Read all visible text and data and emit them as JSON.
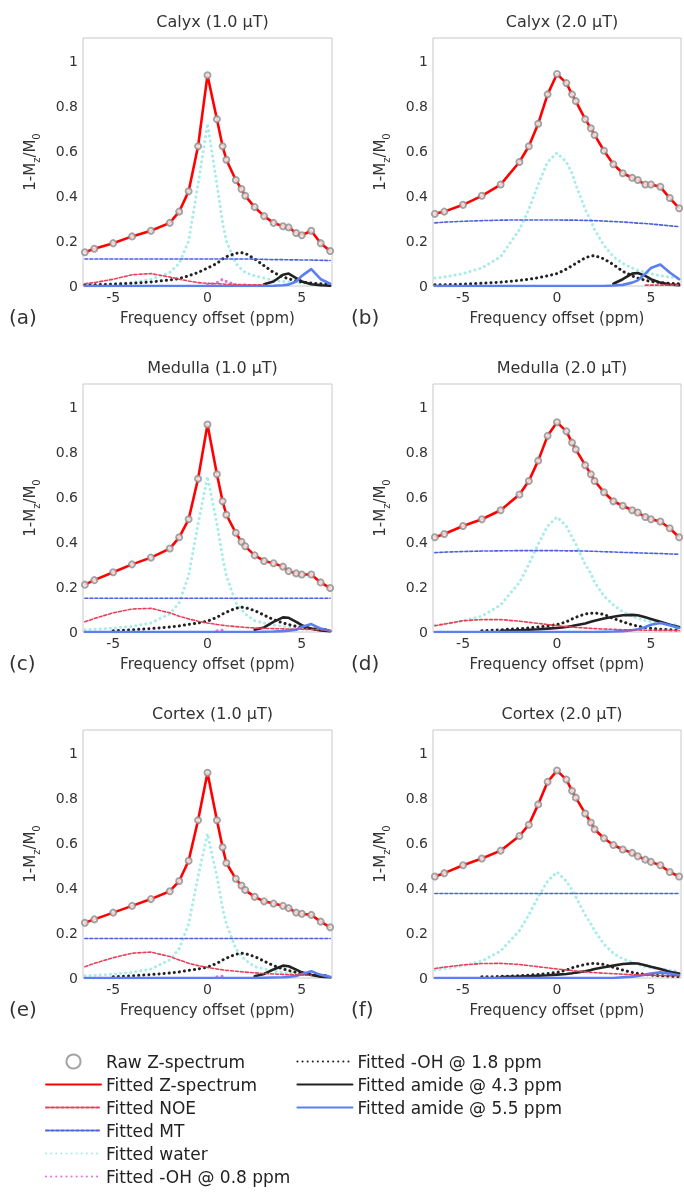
{
  "chart_data": [
    {
      "type": "line",
      "title": "Calyx (1.0 µT)",
      "xlabel": "Frequency offset (ppm)",
      "ylabel": "1-M$_{z}$/M$_{0}$",
      "annotations": [
        "(a)"
      ],
      "xlim": [
        -6.6,
        6.6
      ],
      "xticks": [
        -5,
        0,
        5
      ],
      "ylim": [
        0,
        1.1
      ],
      "yticks": [
        0,
        0.2,
        0.4,
        0.6,
        0.8,
        1
      ],
      "x": [
        -6.5,
        -6,
        -5,
        -4,
        -3,
        -2,
        -1.5,
        -1,
        -0.5,
        0,
        0.5,
        0.8,
        1,
        1.5,
        1.8,
        2,
        2.5,
        3,
        3.5,
        4,
        4.3,
        4.7,
        5,
        5.5,
        6,
        6.5
      ],
      "series": [
        {
          "type": "scatter",
          "marker": "circle",
          "color": "#8c8c8c",
          "values": [
            0.15,
            0.165,
            0.19,
            0.22,
            0.245,
            0.28,
            0.33,
            0.42,
            0.62,
            0.935,
            0.74,
            0.62,
            0.56,
            0.47,
            0.43,
            0.4,
            0.35,
            0.31,
            0.28,
            0.265,
            0.26,
            0.235,
            0.225,
            0.245,
            0.19,
            0.155
          ]
        },
        {
          "color": "#ff0000",
          "line_style": "solid",
          "values": [
            0.15,
            0.165,
            0.19,
            0.22,
            0.245,
            0.28,
            0.33,
            0.42,
            0.62,
            0.935,
            0.74,
            0.62,
            0.56,
            0.47,
            0.43,
            0.4,
            0.35,
            0.31,
            0.28,
            0.265,
            0.26,
            0.235,
            0.225,
            0.245,
            0.19,
            0.155
          ]
        },
        {
          "color": "#e8405a",
          "line_style": "dashed",
          "values": [
            0.01,
            0.015,
            0.03,
            0.05,
            0.055,
            0.04,
            0.03,
            0.022,
            0.015,
            0.012,
            0.01,
            0.009,
            0.008,
            0.007,
            0.006,
            0.006,
            0.005,
            0.005,
            null,
            null,
            null,
            null,
            null,
            null,
            null,
            null
          ]
        },
        {
          "color": "#4a60e0",
          "line_style": "dashed",
          "values": [
            0.12,
            0.12,
            0.12,
            0.12,
            0.12,
            0.12,
            0.12,
            0.12,
            0.12,
            0.12,
            0.12,
            0.12,
            0.12,
            0.12,
            0.12,
            0.12,
            0.119,
            0.118,
            0.117,
            0.117,
            0.116,
            0.116,
            0.115,
            0.115,
            0.114,
            0.113
          ]
        },
        {
          "color": "#a8ece8",
          "line_style": "dotted",
          "values": [
            0.005,
            0.006,
            0.01,
            0.015,
            0.03,
            0.06,
            0.1,
            0.2,
            0.45,
            0.72,
            0.45,
            0.28,
            0.2,
            0.1,
            0.075,
            0.06,
            0.045,
            0.035,
            0.025,
            0.02,
            0.018,
            0.015,
            0.013,
            0.01,
            0.008,
            0.007
          ]
        },
        {
          "color": "#e070e0",
          "line_style": "dotted",
          "values": [
            null,
            null,
            null,
            null,
            null,
            null,
            null,
            null,
            null,
            0.005,
            0.015,
            0.03,
            0.02,
            0.005,
            null,
            null,
            null,
            null,
            null,
            null,
            null,
            null,
            null,
            null,
            null,
            null
          ]
        },
        {
          "color": "#222222",
          "line_style": "dotted",
          "values": [
            0.005,
            0.006,
            0.008,
            0.012,
            0.018,
            0.027,
            0.033,
            0.045,
            0.06,
            0.08,
            0.1,
            0.12,
            0.13,
            0.145,
            0.148,
            0.145,
            0.12,
            0.09,
            0.06,
            0.04,
            0.032,
            0.022,
            0.018,
            0.013,
            0.01,
            0.008
          ]
        },
        {
          "color": "#222222",
          "line_style": "solid",
          "values": [
            null,
            null,
            null,
            null,
            null,
            null,
            null,
            null,
            null,
            null,
            null,
            null,
            null,
            null,
            null,
            null,
            null,
            0.008,
            0.02,
            0.05,
            0.055,
            0.035,
            0.02,
            0.008,
            0.003,
            0.001
          ]
        },
        {
          "color": "#5b7ff0",
          "line_style": "solid",
          "values": [
            0,
            0,
            0,
            0,
            0,
            0,
            0,
            0,
            0,
            0,
            0,
            0,
            0,
            0,
            0,
            0,
            0,
            0,
            0.001,
            0.003,
            0.006,
            0.02,
            0.045,
            0.075,
            0.03,
            0.01
          ]
        }
      ]
    },
    {
      "type": "line",
      "title": "Calyx (2.0 µT)",
      "xlabel": "Frequency offset (ppm)",
      "ylabel": "1-M$_{z}$/M$_{0}$",
      "annotations": [
        "(b)"
      ],
      "xlim": [
        -6.6,
        6.6
      ],
      "xticks": [
        -5,
        0,
        5
      ],
      "ylim": [
        0,
        1.1
      ],
      "yticks": [
        0,
        0.2,
        0.4,
        0.6,
        0.8,
        1
      ],
      "x": [
        -6.5,
        -6,
        -5,
        -4,
        -3,
        -2,
        -1.5,
        -1,
        -0.5,
        0,
        0.5,
        0.8,
        1,
        1.5,
        1.8,
        2,
        2.5,
        3,
        3.5,
        4,
        4.3,
        4.7,
        5,
        5.5,
        6,
        6.5
      ],
      "series": [
        {
          "type": "scatter",
          "marker": "circle",
          "color": "#8c8c8c",
          "values": [
            0.32,
            0.33,
            0.36,
            0.4,
            0.45,
            0.55,
            0.62,
            0.72,
            0.85,
            0.94,
            0.9,
            0.85,
            0.82,
            0.74,
            0.7,
            0.67,
            0.6,
            0.54,
            0.5,
            0.48,
            0.47,
            0.45,
            0.45,
            0.44,
            0.39,
            0.345
          ]
        },
        {
          "color": "#ff0000",
          "line_style": "solid",
          "values": [
            0.32,
            0.33,
            0.36,
            0.4,
            0.45,
            0.55,
            0.62,
            0.72,
            0.85,
            0.94,
            0.9,
            0.85,
            0.82,
            0.74,
            0.7,
            0.67,
            0.6,
            0.54,
            0.5,
            0.48,
            0.47,
            0.45,
            0.45,
            0.44,
            0.39,
            0.345
          ]
        },
        {
          "color": "#e8405a",
          "line_style": "dashed",
          "values": [
            null,
            null,
            null,
            null,
            null,
            null,
            null,
            null,
            null,
            null,
            null,
            null,
            null,
            null,
            null,
            null,
            null,
            null,
            null,
            null,
            null,
            0.004,
            0.004,
            0.004,
            0.004,
            0.004
          ]
        },
        {
          "color": "#4a60e0",
          "line_style": "dashed",
          "values": [
            0.28,
            0.283,
            0.287,
            0.29,
            0.292,
            0.293,
            0.293,
            0.293,
            0.293,
            0.293,
            0.292,
            0.292,
            0.292,
            0.291,
            0.29,
            0.29,
            0.288,
            0.286,
            0.284,
            0.281,
            0.279,
            0.277,
            0.275,
            0.271,
            0.267,
            0.263
          ]
        },
        {
          "color": "#a8ece8",
          "line_style": "dotted",
          "values": [
            0.035,
            0.04,
            0.055,
            0.08,
            0.13,
            0.25,
            0.34,
            0.45,
            0.55,
            0.59,
            0.55,
            0.5,
            0.45,
            0.34,
            0.29,
            0.25,
            0.18,
            0.13,
            0.1,
            0.08,
            0.07,
            0.06,
            0.055,
            0.045,
            0.04,
            0.035
          ]
        },
        {
          "color": "#222222",
          "line_style": "dotted",
          "values": [
            0.005,
            0.006,
            0.008,
            0.012,
            0.017,
            0.025,
            0.03,
            0.037,
            0.045,
            0.055,
            0.075,
            0.09,
            0.1,
            0.125,
            0.133,
            0.135,
            0.12,
            0.095,
            0.065,
            0.045,
            0.035,
            0.025,
            0.02,
            0.015,
            0.012,
            0.01
          ]
        },
        {
          "color": "#222222",
          "line_style": "solid",
          "values": [
            null,
            null,
            null,
            null,
            null,
            null,
            null,
            null,
            null,
            null,
            null,
            null,
            null,
            null,
            null,
            null,
            null,
            0.01,
            0.03,
            0.055,
            0.058,
            0.045,
            0.03,
            0.015,
            0.007,
            0.004
          ]
        },
        {
          "color": "#5b7ff0",
          "line_style": "solid",
          "values": [
            0,
            0,
            0,
            0,
            0,
            0,
            0,
            0,
            0,
            0,
            0,
            0,
            0,
            0,
            0,
            0,
            0,
            0.002,
            0.005,
            0.015,
            0.025,
            0.055,
            0.08,
            0.095,
            0.06,
            0.03
          ]
        }
      ]
    },
    {
      "type": "line",
      "title": "Medulla (1.0 µT)",
      "xlabel": "Frequency offset (ppm)",
      "ylabel": "1-M$_{z}$/M$_{0}$",
      "annotations": [
        "(c)"
      ],
      "xlim": [
        -6.6,
        6.6
      ],
      "xticks": [
        -5,
        0,
        5
      ],
      "ylim": [
        0,
        1.1
      ],
      "yticks": [
        0,
        0.2,
        0.4,
        0.6,
        0.8,
        1
      ],
      "x": [
        -6.5,
        -6,
        -5,
        -4,
        -3,
        -2,
        -1.5,
        -1,
        -0.5,
        0,
        0.5,
        0.8,
        1,
        1.5,
        1.8,
        2,
        2.5,
        3,
        3.5,
        4,
        4.3,
        4.7,
        5,
        5.5,
        6,
        6.5
      ],
      "series": [
        {
          "type": "scatter",
          "marker": "circle",
          "color": "#8c8c8c",
          "values": [
            0.21,
            0.23,
            0.265,
            0.3,
            0.33,
            0.37,
            0.42,
            0.5,
            0.68,
            0.92,
            0.7,
            0.58,
            0.52,
            0.44,
            0.4,
            0.38,
            0.34,
            0.315,
            0.305,
            0.29,
            0.27,
            0.26,
            0.255,
            0.255,
            0.22,
            0.195
          ]
        },
        {
          "color": "#ff0000",
          "line_style": "solid",
          "values": [
            0.21,
            0.23,
            0.265,
            0.3,
            0.33,
            0.37,
            0.42,
            0.5,
            0.68,
            0.92,
            0.7,
            0.58,
            0.52,
            0.44,
            0.4,
            0.38,
            0.34,
            0.315,
            0.305,
            0.29,
            0.27,
            0.26,
            0.255,
            0.255,
            0.22,
            0.195
          ]
        },
        {
          "color": "#e8405a",
          "line_style": "dashed",
          "values": [
            0.045,
            0.06,
            0.085,
            0.102,
            0.105,
            0.085,
            0.07,
            0.058,
            0.048,
            0.04,
            0.033,
            0.03,
            0.028,
            0.024,
            0.022,
            0.02,
            0.018,
            0.016,
            0.015,
            0.014,
            0.013,
            0.012,
            0.012,
            0.011,
            0.01,
            0.01
          ]
        },
        {
          "color": "#4a60e0",
          "line_style": "dashed",
          "values": [
            0.15,
            0.15,
            0.15,
            0.15,
            0.15,
            0.15,
            0.15,
            0.15,
            0.15,
            0.15,
            0.15,
            0.15,
            0.15,
            0.15,
            0.15,
            0.15,
            0.15,
            0.15,
            0.15,
            0.15,
            0.15,
            0.15,
            0.15,
            0.15,
            0.15,
            0.15
          ]
        },
        {
          "color": "#a8ece8",
          "line_style": "dotted",
          "values": [
            0.01,
            0.012,
            0.017,
            0.025,
            0.04,
            0.08,
            0.13,
            0.25,
            0.48,
            0.69,
            0.48,
            0.33,
            0.25,
            0.13,
            0.1,
            0.08,
            0.05,
            0.04,
            0.03,
            0.025,
            0.022,
            0.018,
            0.016,
            0.013,
            0.011,
            0.01
          ]
        },
        {
          "color": "#e070e0",
          "line_style": "dotted",
          "values": [
            null,
            null,
            null,
            null,
            null,
            null,
            null,
            null,
            null,
            null,
            0.005,
            0.008,
            0.005,
            null,
            null,
            null,
            null,
            null,
            null,
            null,
            null,
            null,
            null,
            null,
            null,
            null
          ]
        },
        {
          "color": "#222222",
          "line_style": "dotted",
          "values": [
            null,
            null,
            0.006,
            0.01,
            0.015,
            0.022,
            0.027,
            0.034,
            0.04,
            0.048,
            0.065,
            0.08,
            0.088,
            0.105,
            0.11,
            0.108,
            0.095,
            0.075,
            0.055,
            0.04,
            0.033,
            0.025,
            0.02,
            0.015,
            0.012,
            0.01
          ]
        },
        {
          "color": "#222222",
          "line_style": "solid",
          "values": [
            null,
            null,
            null,
            null,
            null,
            null,
            null,
            null,
            null,
            null,
            null,
            null,
            null,
            null,
            null,
            null,
            0.01,
            0.02,
            0.045,
            0.065,
            0.063,
            0.045,
            0.03,
            0.015,
            0.007,
            0.004
          ]
        },
        {
          "color": "#5b7ff0",
          "line_style": "solid",
          "values": [
            0,
            0,
            0,
            0,
            0,
            0,
            0,
            0,
            0,
            0,
            0,
            0,
            0,
            0,
            0,
            0,
            0,
            0.001,
            0.002,
            0.004,
            0.006,
            0.01,
            0.022,
            0.035,
            0.015,
            0.006
          ]
        }
      ]
    },
    {
      "type": "line",
      "title": "Medulla (2.0 µT)",
      "xlabel": "Frequency offset (ppm)",
      "ylabel": "1-M$_{z}$/M$_{0}$",
      "annotations": [
        "(d)"
      ],
      "xlim": [
        -6.6,
        6.6
      ],
      "xticks": [
        -5,
        0,
        5
      ],
      "ylim": [
        0,
        1.1
      ],
      "yticks": [
        0,
        0.2,
        0.4,
        0.6,
        0.8,
        1
      ],
      "x": [
        -6.5,
        -6,
        -5,
        -4,
        -3,
        -2,
        -1.5,
        -1,
        -0.5,
        0,
        0.5,
        0.8,
        1,
        1.5,
        1.8,
        2,
        2.5,
        3,
        3.5,
        4,
        4.3,
        4.7,
        5,
        5.5,
        6,
        6.5
      ],
      "series": [
        {
          "type": "scatter",
          "marker": "circle",
          "color": "#8c8c8c",
          "values": [
            0.42,
            0.435,
            0.47,
            0.5,
            0.54,
            0.61,
            0.67,
            0.76,
            0.87,
            0.93,
            0.89,
            0.84,
            0.81,
            0.74,
            0.7,
            0.67,
            0.62,
            0.58,
            0.56,
            0.54,
            0.53,
            0.51,
            0.5,
            0.49,
            0.46,
            0.42
          ]
        },
        {
          "color": "#ff0000",
          "line_style": "solid",
          "values": [
            0.42,
            0.435,
            0.47,
            0.5,
            0.54,
            0.61,
            0.67,
            0.76,
            0.87,
            0.93,
            0.89,
            0.84,
            0.81,
            0.74,
            0.7,
            0.67,
            0.62,
            0.58,
            0.56,
            0.54,
            0.53,
            0.51,
            0.5,
            0.49,
            0.46,
            0.42
          ]
        },
        {
          "color": "#e8405a",
          "line_style": "dashed",
          "values": [
            0.028,
            0.035,
            0.05,
            0.055,
            0.055,
            0.048,
            0.043,
            0.038,
            0.033,
            0.028,
            0.024,
            0.022,
            0.02,
            0.018,
            0.016,
            0.015,
            0.013,
            0.012,
            0.01,
            0.01,
            0.009,
            0.008,
            0.008,
            0.007,
            0.007,
            0.006
          ]
        },
        {
          "color": "#4a60e0",
          "line_style": "dashed",
          "values": [
            0.352,
            0.354,
            0.357,
            0.359,
            0.36,
            0.361,
            0.361,
            0.361,
            0.361,
            0.361,
            0.36,
            0.36,
            0.36,
            0.359,
            0.358,
            0.358,
            0.356,
            0.355,
            0.353,
            0.352,
            0.351,
            0.35,
            0.349,
            0.348,
            0.346,
            0.345
          ]
        },
        {
          "color": "#a8ece8",
          "line_style": "dotted",
          "values": [
            0.03,
            0.035,
            0.05,
            0.07,
            0.12,
            0.22,
            0.3,
            0.39,
            0.47,
            0.51,
            0.47,
            0.42,
            0.39,
            0.3,
            0.26,
            0.22,
            0.16,
            0.12,
            0.09,
            0.07,
            0.06,
            0.05,
            0.045,
            0.04,
            0.035,
            0.03
          ]
        },
        {
          "color": "#222222",
          "line_style": "dotted",
          "values": [
            null,
            null,
            null,
            0.006,
            0.01,
            0.015,
            0.018,
            0.022,
            0.027,
            0.033,
            0.045,
            0.058,
            0.065,
            0.08,
            0.083,
            0.085,
            0.078,
            0.06,
            0.045,
            0.032,
            0.026,
            0.02,
            0.016,
            0.012,
            0.01,
            0.008
          ]
        },
        {
          "color": "#222222",
          "line_style": "solid",
          "values": [
            null,
            null,
            null,
            null,
            0.005,
            0.008,
            0.01,
            0.012,
            0.015,
            0.018,
            0.022,
            0.026,
            0.03,
            0.038,
            0.045,
            0.05,
            0.06,
            0.068,
            0.074,
            0.076,
            0.074,
            0.065,
            0.058,
            0.045,
            0.032,
            0.022
          ]
        },
        {
          "color": "#5b7ff0",
          "line_style": "solid",
          "values": [
            0,
            0,
            0,
            0,
            0,
            0,
            0,
            0,
            0,
            0,
            0,
            0,
            0,
            0,
            0,
            0,
            0.001,
            0.002,
            0.004,
            0.008,
            0.012,
            0.022,
            0.032,
            0.04,
            0.03,
            0.018
          ]
        }
      ]
    },
    {
      "type": "line",
      "title": "Cortex (1.0 µT)",
      "xlabel": "Frequency offset (ppm)",
      "ylabel": "1-M$_{z}$/M$_{0}$",
      "annotations": [
        "(e)"
      ],
      "xlim": [
        -6.6,
        6.6
      ],
      "xticks": [
        -5,
        0,
        5
      ],
      "ylim": [
        0,
        1.1
      ],
      "yticks": [
        0,
        0.2,
        0.4,
        0.6,
        0.8,
        1
      ],
      "x": [
        -6.5,
        -6,
        -5,
        -4,
        -3,
        -2,
        -1.5,
        -1,
        -0.5,
        0,
        0.5,
        0.8,
        1,
        1.5,
        1.8,
        2,
        2.5,
        3,
        3.5,
        4,
        4.3,
        4.7,
        5,
        5.5,
        6,
        6.5
      ],
      "series": [
        {
          "type": "scatter",
          "marker": "circle",
          "color": "#8c8c8c",
          "values": [
            0.245,
            0.26,
            0.29,
            0.32,
            0.35,
            0.385,
            0.43,
            0.52,
            0.7,
            0.91,
            0.7,
            0.58,
            0.51,
            0.44,
            0.41,
            0.39,
            0.36,
            0.34,
            0.33,
            0.32,
            0.31,
            0.29,
            0.285,
            0.28,
            0.25,
            0.225
          ]
        },
        {
          "color": "#ff0000",
          "line_style": "solid",
          "values": [
            0.245,
            0.26,
            0.29,
            0.32,
            0.35,
            0.385,
            0.43,
            0.52,
            0.7,
            0.91,
            0.7,
            0.58,
            0.51,
            0.44,
            0.41,
            0.39,
            0.36,
            0.34,
            0.33,
            0.32,
            0.31,
            0.29,
            0.285,
            0.28,
            0.25,
            0.225
          ]
        },
        {
          "color": "#e8405a",
          "line_style": "dashed",
          "values": [
            0.05,
            0.065,
            0.09,
            0.11,
            0.115,
            0.095,
            0.08,
            0.065,
            0.055,
            0.047,
            0.04,
            0.036,
            0.034,
            0.03,
            0.028,
            0.026,
            0.023,
            0.02,
            0.018,
            0.016,
            0.015,
            0.014,
            0.013,
            0.012,
            null,
            null
          ]
        },
        {
          "color": "#4a60e0",
          "line_style": "dashed",
          "values": [
            0.175,
            0.175,
            0.175,
            0.175,
            0.175,
            0.175,
            0.175,
            0.175,
            0.175,
            0.175,
            0.175,
            0.175,
            0.175,
            0.175,
            0.175,
            0.175,
            0.175,
            0.175,
            0.175,
            0.175,
            0.175,
            0.175,
            0.175,
            0.175,
            0.175,
            0.175
          ]
        },
        {
          "color": "#a8ece8",
          "line_style": "dotted",
          "values": [
            0.01,
            0.012,
            0.017,
            0.025,
            0.04,
            0.08,
            0.13,
            0.24,
            0.45,
            0.64,
            0.45,
            0.31,
            0.24,
            0.13,
            0.1,
            0.08,
            0.05,
            0.04,
            0.03,
            0.025,
            0.022,
            0.018,
            0.016,
            0.013,
            0.011,
            0.01
          ]
        },
        {
          "color": "#e070e0",
          "line_style": "dotted",
          "values": [
            null,
            null,
            null,
            null,
            null,
            null,
            null,
            null,
            null,
            null,
            0.005,
            0.008,
            0.005,
            null,
            null,
            null,
            null,
            null,
            null,
            null,
            null,
            null,
            null,
            null,
            null,
            null
          ]
        },
        {
          "color": "#222222",
          "line_style": "dotted",
          "values": [
            null,
            null,
            0.006,
            0.01,
            0.015,
            0.022,
            0.027,
            0.034,
            0.04,
            0.048,
            0.065,
            0.08,
            0.088,
            0.105,
            0.11,
            0.108,
            0.095,
            0.075,
            0.055,
            0.04,
            0.033,
            0.025,
            0.02,
            0.015,
            0.012,
            0.01
          ]
        },
        {
          "color": "#222222",
          "line_style": "solid",
          "values": [
            null,
            null,
            null,
            null,
            null,
            null,
            null,
            null,
            null,
            null,
            null,
            null,
            null,
            null,
            null,
            null,
            0.008,
            0.018,
            0.038,
            0.055,
            0.052,
            0.037,
            0.025,
            0.013,
            0.006,
            0.003
          ]
        },
        {
          "color": "#5b7ff0",
          "line_style": "solid",
          "values": [
            0,
            0,
            0,
            0,
            0,
            0,
            0,
            0,
            0,
            0,
            0,
            0,
            0,
            0,
            0,
            0,
            0,
            0.001,
            0.002,
            0.003,
            0.005,
            0.009,
            0.018,
            0.03,
            0.014,
            0.005
          ]
        }
      ]
    },
    {
      "type": "line",
      "title": "Cortex (2.0 µT)",
      "xlabel": "Frequency offset (ppm)",
      "ylabel": "1-M$_{z}$/M$_{0}$",
      "annotations": [
        "(f)"
      ],
      "xlim": [
        -6.6,
        6.6
      ],
      "xticks": [
        -5,
        0,
        5
      ],
      "ylim": [
        0,
        1.1
      ],
      "yticks": [
        0,
        0.2,
        0.4,
        0.6,
        0.8,
        1
      ],
      "legend": "bottom",
      "x": [
        -6.5,
        -6,
        -5,
        -4,
        -3,
        -2,
        -1.5,
        -1,
        -0.5,
        0,
        0.5,
        0.8,
        1,
        1.5,
        1.8,
        2,
        2.5,
        3,
        3.5,
        4,
        4.3,
        4.7,
        5,
        5.5,
        6,
        6.5
      ],
      "series": [
        {
          "name": "Raw Z-spectrum",
          "type": "scatter",
          "marker": "circle",
          "color": "#8c8c8c",
          "values": [
            0.45,
            0.465,
            0.5,
            0.53,
            0.565,
            0.63,
            0.68,
            0.77,
            0.87,
            0.92,
            0.88,
            0.83,
            0.8,
            0.73,
            0.69,
            0.66,
            0.62,
            0.59,
            0.57,
            0.555,
            0.54,
            0.525,
            0.515,
            0.5,
            0.47,
            0.45
          ]
        },
        {
          "name": "Fitted Z-spectrum",
          "color": "#ff0000",
          "line_style": "solid",
          "values": [
            0.45,
            0.465,
            0.5,
            0.53,
            0.565,
            0.63,
            0.68,
            0.77,
            0.87,
            0.92,
            0.88,
            0.83,
            0.8,
            0.73,
            0.69,
            0.66,
            0.62,
            0.59,
            0.57,
            0.555,
            0.54,
            0.525,
            0.515,
            0.5,
            0.47,
            0.45
          ]
        },
        {
          "name": "Fitted NOE",
          "color": "#e8405a",
          "line_style": "dashed",
          "values": [
            0.042,
            0.048,
            0.058,
            0.064,
            0.065,
            0.06,
            0.055,
            0.05,
            0.045,
            0.04,
            0.036,
            0.033,
            0.031,
            0.027,
            0.025,
            0.024,
            0.021,
            0.019,
            0.017,
            0.015,
            0.014,
            0.013,
            0.012,
            0.011,
            0.01,
            0.01
          ]
        },
        {
          "name": "Fitted MT",
          "color": "#4a60e0",
          "line_style": "dashed",
          "values": [
            0.375,
            0.375,
            0.375,
            0.375,
            0.375,
            0.375,
            0.375,
            0.375,
            0.375,
            0.375,
            0.375,
            0.375,
            0.375,
            0.375,
            0.375,
            0.375,
            0.375,
            0.375,
            0.375,
            0.375,
            0.375,
            0.375,
            0.375,
            0.375,
            0.375,
            0.375
          ]
        },
        {
          "name": "Fitted water",
          "color": "#a8ece8",
          "line_style": "dotted",
          "values": [
            0.035,
            0.04,
            0.055,
            0.075,
            0.12,
            0.21,
            0.28,
            0.36,
            0.43,
            0.47,
            0.43,
            0.39,
            0.36,
            0.28,
            0.24,
            0.21,
            0.15,
            0.11,
            0.085,
            0.07,
            0.06,
            0.05,
            0.045,
            0.04,
            0.035,
            0.03
          ]
        },
        {
          "name": "Fitted -OH @ 0.8 ppm",
          "color": "#e070e0",
          "line_style": "dotted",
          "values": [
            null,
            null,
            null,
            null,
            null,
            null,
            null,
            null,
            null,
            null,
            null,
            null,
            null,
            null,
            null,
            null,
            null,
            null,
            null,
            null,
            null,
            null,
            null,
            null,
            null,
            null
          ]
        },
        {
          "name": "Fitted -OH @ 1.8 ppm",
          "color": "#222222",
          "line_style": "dotted",
          "values": [
            null,
            null,
            null,
            0.005,
            0.007,
            0.01,
            0.013,
            0.016,
            0.02,
            0.025,
            0.035,
            0.045,
            0.05,
            0.06,
            0.064,
            0.065,
            0.06,
            0.047,
            0.035,
            0.025,
            0.02,
            0.016,
            0.013,
            0.01,
            0.008,
            0.006
          ]
        },
        {
          "name": "Fitted amide @ 4.3 ppm",
          "color": "#222222",
          "line_style": "solid",
          "values": [
            null,
            null,
            null,
            null,
            0.004,
            0.006,
            0.008,
            0.01,
            0.012,
            0.015,
            0.018,
            0.021,
            0.024,
            0.03,
            0.035,
            0.04,
            0.048,
            0.055,
            0.062,
            0.065,
            0.064,
            0.057,
            0.05,
            0.04,
            0.028,
            0.02
          ]
        },
        {
          "name": "Fitted amide @ 5.5 ppm",
          "color": "#5b7ff0",
          "line_style": "solid",
          "values": [
            0,
            0,
            0,
            0,
            0,
            0,
            0,
            0,
            0,
            0,
            0,
            0,
            0,
            0,
            0,
            0,
            0,
            0,
            0.003,
            0.006,
            0.009,
            0.015,
            0.02,
            0.025,
            0.02,
            0.012
          ]
        }
      ]
    }
  ]
}
